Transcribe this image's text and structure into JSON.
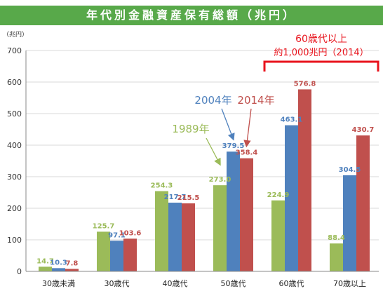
{
  "chart_data": {
    "type": "bar",
    "title": "年代別金融資産保有総額（兆円）",
    "y_unit_label": "（兆円）",
    "categories": [
      "30歳未満",
      "30歳代",
      "40歳代",
      "50歳代",
      "60歳代",
      "70歳以上"
    ],
    "series": [
      {
        "name": "1989年",
        "color": "#9bbb59",
        "values": [
          14.7,
          125.7,
          254.3,
          273.0,
          224.9,
          88.4
        ],
        "labels": [
          "14.7",
          "125.7",
          "254.3",
          "273.0",
          "224.9",
          "88.4"
        ]
      },
      {
        "name": "2004年",
        "color": "#4f81bd",
        "values": [
          10.3,
          97.1,
          217.7,
          379.5,
          463.1,
          304.5
        ],
        "labels": [
          "10.3",
          "97.1",
          "217.7",
          "379.5",
          "463.1",
          "304.5"
        ]
      },
      {
        "name": "2014年",
        "color": "#c0504d",
        "values": [
          7.8,
          103.6,
          215.5,
          358.4,
          576.8,
          430.7
        ],
        "labels": [
          "7.8",
          "103.6",
          "215.5",
          "358.4",
          "576.8",
          "430.7"
        ]
      }
    ],
    "ylim": [
      0,
      700
    ],
    "yticks": [
      0,
      100,
      200,
      300,
      400,
      500,
      600,
      700
    ],
    "grid": true,
    "annotation": {
      "lines": [
        "60歳代以上",
        "約1,000兆円（2014）"
      ],
      "color": "#e8131c",
      "spans_categories": [
        "60歳代",
        "70歳以上"
      ]
    }
  }
}
